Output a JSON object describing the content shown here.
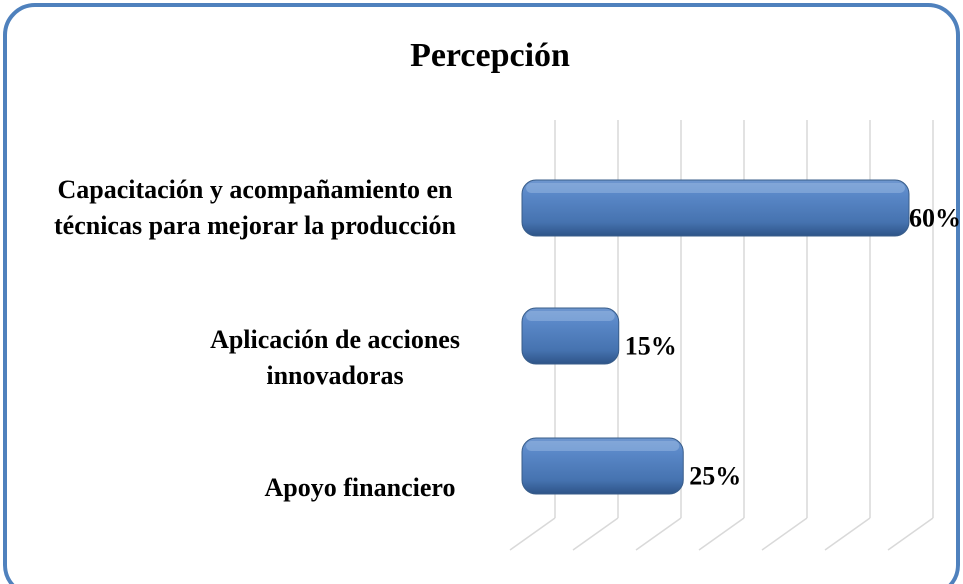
{
  "chart_data": {
    "type": "bar",
    "orientation": "horizontal",
    "title": "Percepción",
    "categories": [
      "Capacitación y acompañamiento en técnicas para mejorar la producción",
      "Aplicación de acciones innovadoras",
      "Apoyo financiero"
    ],
    "values": [
      60,
      15,
      25
    ],
    "value_labels": [
      "60%",
      "15%",
      "25%"
    ],
    "color": "#4f81bd",
    "xlim": [
      0,
      60
    ],
    "xticks": [
      0,
      10,
      20,
      30,
      40,
      50,
      60
    ],
    "grid": true
  }
}
